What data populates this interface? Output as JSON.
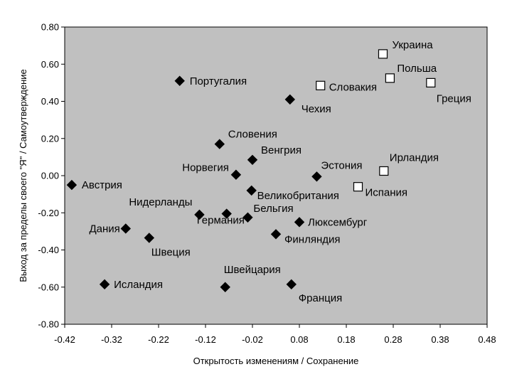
{
  "chart_data": {
    "type": "scatter",
    "title": "",
    "xlabel": "Открытость изменениям / Сохранение",
    "ylabel": "Выход за пределы своего \"Я\" / Самоутверждение",
    "xlim": [
      -0.42,
      0.48
    ],
    "ylim": [
      -0.8,
      0.8
    ],
    "xticks": [
      "-0.42",
      "-0.32",
      "-0.22",
      "-0.12",
      "-0.02",
      "0.08",
      "0.18",
      "0.28",
      "0.38",
      "0.48"
    ],
    "yticks": [
      "-0.80",
      "-0.60",
      "-0.40",
      "-0.20",
      "0.00",
      "0.20",
      "0.40",
      "0.60",
      "0.80"
    ],
    "grid": false,
    "plot_background": "#c0c0c0",
    "series": [
      {
        "marker": "filled-diamond",
        "color": "#000000",
        "points": [
          {
            "label": "Португалия",
            "x": -0.175,
            "y": 0.51
          },
          {
            "label": "Чехия",
            "x": 0.06,
            "y": 0.41
          },
          {
            "label": "Словения",
            "x": -0.09,
            "y": 0.17
          },
          {
            "label": "Венгрия",
            "x": -0.02,
            "y": 0.085
          },
          {
            "label": "Норвегия",
            "x": -0.055,
            "y": 0.005
          },
          {
            "label": "Эстония",
            "x": 0.117,
            "y": -0.005
          },
          {
            "label": "Австрия",
            "x": -0.405,
            "y": -0.05
          },
          {
            "label": "Великобритания",
            "x": -0.022,
            "y": -0.08
          },
          {
            "label": "Нидерланды",
            "x": -0.133,
            "y": -0.21
          },
          {
            "label": "Германия",
            "x": -0.075,
            "y": -0.205
          },
          {
            "label": "Бельгия",
            "x": -0.03,
            "y": -0.225
          },
          {
            "label": "Люксембург",
            "x": 0.08,
            "y": -0.25
          },
          {
            "label": "Дания",
            "x": -0.29,
            "y": -0.285
          },
          {
            "label": "Швеция",
            "x": -0.24,
            "y": -0.335
          },
          {
            "label": "Финляндия",
            "x": 0.03,
            "y": -0.315
          },
          {
            "label": "Исландия",
            "x": -0.335,
            "y": -0.585
          },
          {
            "label": "Швейцария",
            "x": -0.078,
            "y": -0.6
          },
          {
            "label": "Франция",
            "x": 0.063,
            "y": -0.585
          }
        ]
      },
      {
        "marker": "open-square",
        "color": "#ffffff",
        "points": [
          {
            "label": "Украина",
            "x": 0.258,
            "y": 0.655
          },
          {
            "label": "Польша",
            "x": 0.273,
            "y": 0.525
          },
          {
            "label": "Словакия",
            "x": 0.125,
            "y": 0.485
          },
          {
            "label": "Греция",
            "x": 0.36,
            "y": 0.5
          },
          {
            "label": "Ирландия",
            "x": 0.26,
            "y": 0.025
          },
          {
            "label": "Испания",
            "x": 0.205,
            "y": -0.06
          }
        ]
      }
    ]
  }
}
